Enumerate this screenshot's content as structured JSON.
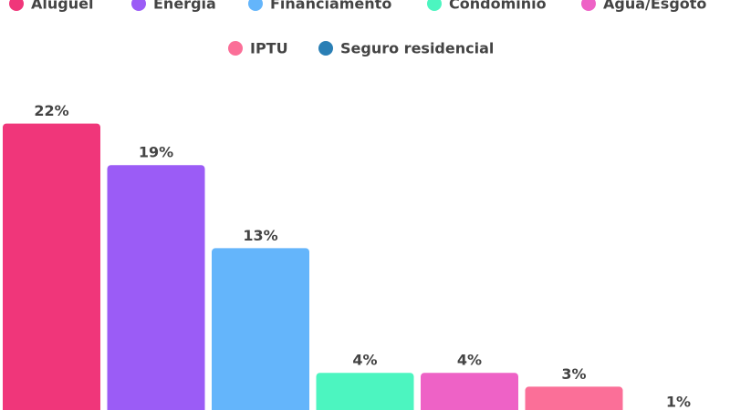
{
  "chart_data": {
    "type": "bar",
    "categories": [
      "Aluguel",
      "Energia",
      "Financiamento",
      "Condomínio",
      "Água/Esgoto",
      "IPTU",
      "Seguro residencial"
    ],
    "values": [
      22,
      19,
      13,
      4,
      4,
      3,
      1
    ],
    "value_labels": [
      "22%",
      "19%",
      "13%",
      "4%",
      "4%",
      "3%",
      "1%"
    ],
    "colors": [
      "#f0367a",
      "#9b5cf6",
      "#64b5fb",
      "#4cf5c0",
      "#ee62c6",
      "#fb6f98",
      "#2a7fb5"
    ]
  }
}
